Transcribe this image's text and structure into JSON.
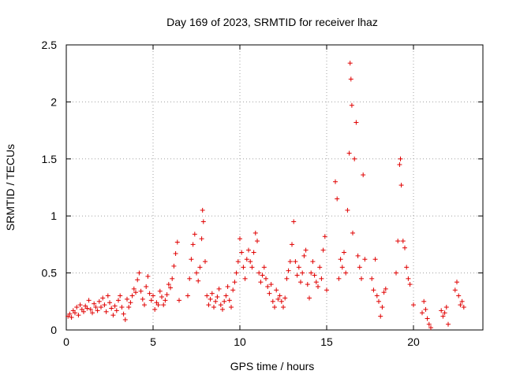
{
  "chart_data": {
    "type": "scatter",
    "title": "Day 169 of 2023, SRMTID for receiver lhaz",
    "xlabel": "GPS time / hours",
    "ylabel": "SRMTID / TECUs",
    "xlim": [
      0,
      24
    ],
    "ylim": [
      0,
      2.5
    ],
    "xticks": [
      0,
      5,
      10,
      15,
      20
    ],
    "yticks": [
      0,
      0.5,
      1,
      1.5,
      2,
      2.5
    ],
    "xtick_labels": [
      "0",
      "5",
      "10",
      "15",
      "20"
    ],
    "ytick_labels": [
      "0",
      "0.5",
      "1",
      "1.5",
      "2",
      "2.5"
    ],
    "grid": true,
    "marker": "+",
    "series": [
      {
        "name": "SRMTID",
        "color": "#e00000",
        "points": [
          [
            0.1,
            0.12
          ],
          [
            0.2,
            0.14
          ],
          [
            0.3,
            0.11
          ],
          [
            0.4,
            0.17
          ],
          [
            0.5,
            0.15
          ],
          [
            0.6,
            0.2
          ],
          [
            0.7,
            0.13
          ],
          [
            0.8,
            0.22
          ],
          [
            0.9,
            0.18
          ],
          [
            1.0,
            0.16
          ],
          [
            1.1,
            0.21
          ],
          [
            1.2,
            0.19
          ],
          [
            1.3,
            0.26
          ],
          [
            1.4,
            0.18
          ],
          [
            1.5,
            0.15
          ],
          [
            1.6,
            0.23
          ],
          [
            1.7,
            0.2
          ],
          [
            1.8,
            0.17
          ],
          [
            1.9,
            0.25
          ],
          [
            2.0,
            0.2
          ],
          [
            2.1,
            0.28
          ],
          [
            2.2,
            0.22
          ],
          [
            2.3,
            0.16
          ],
          [
            2.4,
            0.3
          ],
          [
            2.5,
            0.24
          ],
          [
            2.6,
            0.19
          ],
          [
            2.7,
            0.13
          ],
          [
            2.8,
            0.21
          ],
          [
            2.9,
            0.17
          ],
          [
            3.0,
            0.26
          ],
          [
            3.1,
            0.3
          ],
          [
            3.2,
            0.2
          ],
          [
            3.3,
            0.14
          ],
          [
            3.4,
            0.09
          ],
          [
            3.5,
            0.27
          ],
          [
            3.6,
            0.2
          ],
          [
            3.7,
            0.24
          ],
          [
            3.8,
            0.3
          ],
          [
            3.9,
            0.36
          ],
          [
            4.0,
            0.33
          ],
          [
            4.1,
            0.44
          ],
          [
            4.2,
            0.5
          ],
          [
            4.3,
            0.34
          ],
          [
            4.4,
            0.27
          ],
          [
            4.5,
            0.22
          ],
          [
            4.6,
            0.38
          ],
          [
            4.7,
            0.47
          ],
          [
            4.8,
            0.32
          ],
          [
            4.9,
            0.26
          ],
          [
            5.0,
            0.3
          ],
          [
            5.1,
            0.18
          ],
          [
            5.2,
            0.24
          ],
          [
            5.3,
            0.22
          ],
          [
            5.4,
            0.34
          ],
          [
            5.5,
            0.29
          ],
          [
            5.6,
            0.22
          ],
          [
            5.7,
            0.26
          ],
          [
            5.8,
            0.31
          ],
          [
            5.9,
            0.4
          ],
          [
            6.0,
            0.37
          ],
          [
            6.1,
            0.45
          ],
          [
            6.2,
            0.56
          ],
          [
            6.3,
            0.67
          ],
          [
            6.4,
            0.77
          ],
          [
            6.5,
            0.26
          ],
          [
            7.0,
            0.3
          ],
          [
            7.1,
            0.45
          ],
          [
            7.2,
            0.62
          ],
          [
            7.3,
            0.75
          ],
          [
            7.4,
            0.84
          ],
          [
            7.5,
            0.5
          ],
          [
            7.6,
            0.43
          ],
          [
            7.7,
            0.55
          ],
          [
            7.8,
            0.8
          ],
          [
            7.85,
            1.05
          ],
          [
            7.9,
            0.95
          ],
          [
            8.0,
            0.6
          ],
          [
            8.1,
            0.3
          ],
          [
            8.2,
            0.22
          ],
          [
            8.3,
            0.27
          ],
          [
            8.4,
            0.32
          ],
          [
            8.5,
            0.2
          ],
          [
            8.6,
            0.25
          ],
          [
            8.7,
            0.29
          ],
          [
            8.8,
            0.36
          ],
          [
            8.9,
            0.22
          ],
          [
            9.0,
            0.18
          ],
          [
            9.1,
            0.25
          ],
          [
            9.2,
            0.3
          ],
          [
            9.3,
            0.38
          ],
          [
            9.4,
            0.26
          ],
          [
            9.5,
            0.2
          ],
          [
            9.6,
            0.35
          ],
          [
            9.7,
            0.42
          ],
          [
            9.8,
            0.5
          ],
          [
            9.9,
            0.6
          ],
          [
            10.0,
            0.8
          ],
          [
            10.1,
            0.68
          ],
          [
            10.2,
            0.55
          ],
          [
            10.3,
            0.45
          ],
          [
            10.4,
            0.62
          ],
          [
            10.5,
            0.7
          ],
          [
            10.6,
            0.6
          ],
          [
            10.7,
            0.55
          ],
          [
            10.8,
            0.68
          ],
          [
            10.9,
            0.85
          ],
          [
            11.0,
            0.78
          ],
          [
            11.1,
            0.5
          ],
          [
            11.2,
            0.42
          ],
          [
            11.3,
            0.48
          ],
          [
            11.4,
            0.55
          ],
          [
            11.5,
            0.45
          ],
          [
            11.6,
            0.38
          ],
          [
            11.7,
            0.32
          ],
          [
            11.8,
            0.4
          ],
          [
            11.9,
            0.25
          ],
          [
            12.0,
            0.2
          ],
          [
            12.1,
            0.35
          ],
          [
            12.2,
            0.27
          ],
          [
            12.3,
            0.3
          ],
          [
            12.4,
            0.25
          ],
          [
            12.5,
            0.2
          ],
          [
            12.6,
            0.28
          ],
          [
            12.7,
            0.45
          ],
          [
            12.8,
            0.52
          ],
          [
            12.9,
            0.6
          ],
          [
            13.0,
            0.75
          ],
          [
            13.1,
            0.95
          ],
          [
            13.2,
            0.6
          ],
          [
            13.3,
            0.48
          ],
          [
            13.4,
            0.55
          ],
          [
            13.5,
            0.42
          ],
          [
            13.6,
            0.5
          ],
          [
            13.7,
            0.65
          ],
          [
            13.8,
            0.7
          ],
          [
            13.9,
            0.4
          ],
          [
            14.0,
            0.28
          ],
          [
            14.1,
            0.5
          ],
          [
            14.2,
            0.6
          ],
          [
            14.3,
            0.48
          ],
          [
            14.4,
            0.42
          ],
          [
            14.5,
            0.38
          ],
          [
            14.6,
            0.55
          ],
          [
            14.7,
            0.45
          ],
          [
            14.8,
            0.7
          ],
          [
            14.9,
            0.82
          ],
          [
            15.0,
            0.35
          ],
          [
            15.5,
            1.3
          ],
          [
            15.6,
            1.15
          ],
          [
            15.7,
            0.45
          ],
          [
            15.8,
            0.62
          ],
          [
            15.9,
            0.55
          ],
          [
            16.0,
            0.68
          ],
          [
            16.1,
            0.5
          ],
          [
            16.2,
            1.05
          ],
          [
            16.3,
            1.55
          ],
          [
            16.35,
            2.34
          ],
          [
            16.4,
            2.2
          ],
          [
            16.45,
            1.97
          ],
          [
            16.5,
            0.85
          ],
          [
            16.6,
            1.5
          ],
          [
            16.7,
            1.82
          ],
          [
            16.8,
            0.65
          ],
          [
            16.9,
            0.55
          ],
          [
            17.0,
            0.45
          ],
          [
            17.1,
            1.36
          ],
          [
            17.2,
            0.62
          ],
          [
            17.6,
            0.45
          ],
          [
            17.7,
            0.35
          ],
          [
            17.8,
            0.62
          ],
          [
            17.9,
            0.3
          ],
          [
            18.0,
            0.25
          ],
          [
            18.1,
            0.12
          ],
          [
            18.2,
            0.2
          ],
          [
            18.3,
            0.33
          ],
          [
            18.4,
            0.36
          ],
          [
            19.0,
            0.5
          ],
          [
            19.1,
            0.78
          ],
          [
            19.2,
            1.45
          ],
          [
            19.25,
            1.5
          ],
          [
            19.3,
            1.27
          ],
          [
            19.4,
            0.78
          ],
          [
            19.5,
            0.72
          ],
          [
            19.6,
            0.55
          ],
          [
            19.7,
            0.45
          ],
          [
            19.8,
            0.4
          ],
          [
            20.0,
            0.22
          ],
          [
            20.5,
            0.15
          ],
          [
            20.6,
            0.25
          ],
          [
            20.7,
            0.18
          ],
          [
            20.8,
            0.1
          ],
          [
            20.9,
            0.05
          ],
          [
            21.0,
            0.02
          ],
          [
            21.6,
            0.17
          ],
          [
            21.7,
            0.12
          ],
          [
            21.8,
            0.15
          ],
          [
            21.9,
            0.2
          ],
          [
            22.0,
            0.05
          ],
          [
            22.4,
            0.35
          ],
          [
            22.5,
            0.42
          ],
          [
            22.6,
            0.3
          ],
          [
            22.7,
            0.22
          ],
          [
            22.8,
            0.25
          ],
          [
            22.9,
            0.2
          ]
        ]
      }
    ],
    "baseline_marker_color": "#e00000"
  }
}
